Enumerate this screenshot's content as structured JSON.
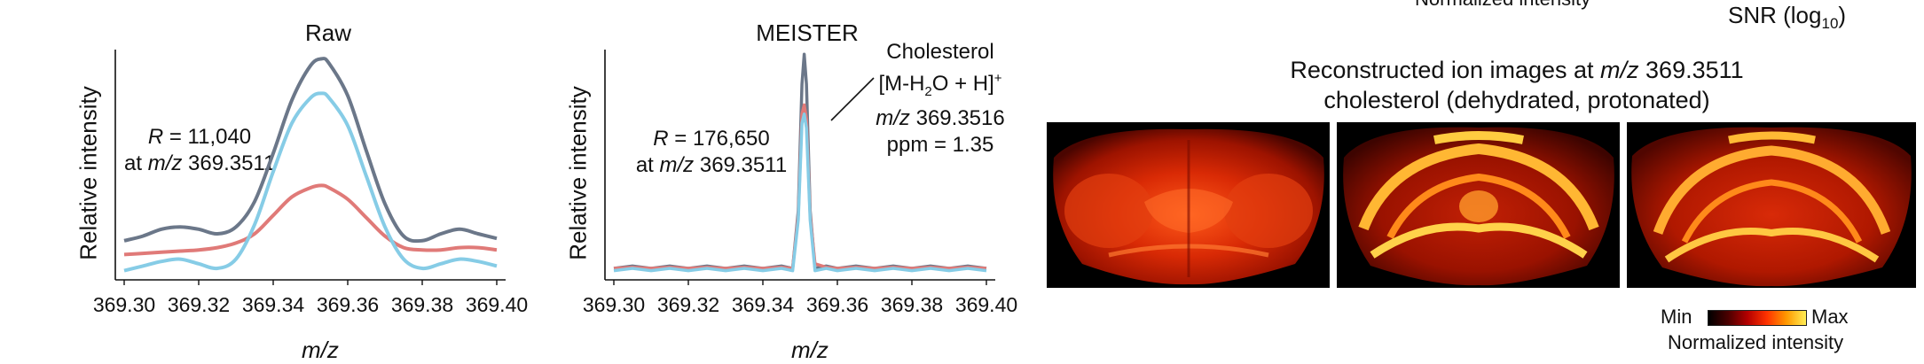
{
  "top_partial": {
    "normalized_intensity_cut": "Normalized intensity",
    "snr_label": "SNR (log",
    "snr_sub": "10",
    "snr_close": ")"
  },
  "raw_panel": {
    "title": "Raw",
    "ylabel": "Relative intensity",
    "xlabel": "m/z",
    "annotation_r_label": "R",
    "annotation_r_value": " = 11,040",
    "annotation_at": "at ",
    "annotation_mz": "m/z",
    "annotation_mz_value": " 369.3511"
  },
  "meister_panel": {
    "title": "MEISTER",
    "ylabel": "Relative intensity",
    "xlabel": "m/z",
    "annotation_r_label": "R",
    "annotation_r_value": " = 176,650",
    "annotation_at": "at ",
    "annotation_mz": "m/z",
    "annotation_mz_value": " 369.3511",
    "peak_label_line1": "Cholesterol",
    "peak_label_line2_a": "[M-H",
    "peak_label_line2_sub": "2",
    "peak_label_line2_b": "O + H]",
    "peak_label_line2_sup": "+",
    "peak_label_line3_mz": "m/z",
    "peak_label_line3_value": " 369.3516",
    "peak_label_line4": "ppm = 1.35"
  },
  "recon": {
    "title_a": "Reconstructed ion images at ",
    "title_mz": "m/z",
    "title_b": " 369.3511",
    "subtitle": "cholesterol (dehydrated, protonated)",
    "legend_min": "Min",
    "legend_max": "Max",
    "legend_caption": "Normalized intensity"
  },
  "colors": {
    "dark_series": "#6b7789",
    "red_series": "#e07a78",
    "blue_series": "#86cce6"
  },
  "chart_data": [
    {
      "type": "line",
      "title": "Raw",
      "xlabel": "m/z",
      "ylabel": "Relative intensity",
      "xlim": [
        369.3,
        369.4
      ],
      "ylim": [
        0,
        1.0
      ],
      "xticks": [
        "369.30",
        "369.32",
        "369.34",
        "369.36",
        "369.38",
        "369.40"
      ],
      "x": [
        369.3,
        369.305,
        369.31,
        369.315,
        369.32,
        369.325,
        369.33,
        369.335,
        369.34,
        369.345,
        369.35,
        369.353,
        369.355,
        369.36,
        369.365,
        369.37,
        369.375,
        369.38,
        369.385,
        369.39,
        369.395,
        369.4
      ],
      "series": [
        {
          "color": "#6b7789",
          "values": [
            0.17,
            0.19,
            0.22,
            0.23,
            0.22,
            0.2,
            0.23,
            0.34,
            0.55,
            0.78,
            0.93,
            0.96,
            0.94,
            0.8,
            0.56,
            0.33,
            0.19,
            0.17,
            0.2,
            0.22,
            0.2,
            0.18
          ]
        },
        {
          "color": "#e07a78",
          "values": [
            0.11,
            0.115,
            0.12,
            0.125,
            0.13,
            0.14,
            0.16,
            0.2,
            0.28,
            0.36,
            0.4,
            0.41,
            0.4,
            0.35,
            0.27,
            0.19,
            0.14,
            0.13,
            0.13,
            0.14,
            0.14,
            0.13
          ]
        },
        {
          "color": "#86cce6",
          "values": [
            0.04,
            0.06,
            0.08,
            0.09,
            0.07,
            0.05,
            0.09,
            0.24,
            0.47,
            0.68,
            0.79,
            0.81,
            0.79,
            0.67,
            0.45,
            0.23,
            0.09,
            0.05,
            0.07,
            0.09,
            0.08,
            0.06
          ]
        }
      ]
    },
    {
      "type": "line",
      "title": "MEISTER",
      "xlabel": "m/z",
      "ylabel": "Relative intensity",
      "xlim": [
        369.3,
        369.4
      ],
      "ylim": [
        0,
        1.0
      ],
      "xticks": [
        "369.30",
        "369.32",
        "369.34",
        "369.36",
        "369.38",
        "369.40"
      ],
      "x": [
        369.3,
        369.305,
        369.31,
        369.315,
        369.32,
        369.325,
        369.33,
        369.335,
        369.34,
        369.345,
        369.348,
        369.3495,
        369.3505,
        369.3511,
        369.3517,
        369.3527,
        369.354,
        369.357,
        369.36,
        369.365,
        369.37,
        369.375,
        369.38,
        369.385,
        369.39,
        369.395,
        369.4
      ],
      "series": [
        {
          "color": "#6b7789",
          "values": [
            0.05,
            0.06,
            0.05,
            0.06,
            0.05,
            0.06,
            0.05,
            0.06,
            0.05,
            0.06,
            0.05,
            0.3,
            0.85,
            0.98,
            0.85,
            0.3,
            0.05,
            0.06,
            0.05,
            0.06,
            0.05,
            0.06,
            0.05,
            0.06,
            0.05,
            0.06,
            0.05
          ]
        },
        {
          "color": "#e07a78",
          "values": [
            0.05,
            0.055,
            0.05,
            0.055,
            0.05,
            0.055,
            0.05,
            0.055,
            0.05,
            0.055,
            0.05,
            0.28,
            0.72,
            0.76,
            0.7,
            0.28,
            0.07,
            0.055,
            0.05,
            0.055,
            0.05,
            0.055,
            0.05,
            0.055,
            0.05,
            0.055,
            0.05
          ]
        },
        {
          "color": "#86cce6",
          "values": [
            0.04,
            0.05,
            0.04,
            0.05,
            0.04,
            0.05,
            0.04,
            0.05,
            0.04,
            0.05,
            0.04,
            0.26,
            0.68,
            0.72,
            0.66,
            0.26,
            0.04,
            0.05,
            0.04,
            0.05,
            0.04,
            0.05,
            0.04,
            0.05,
            0.04,
            0.05,
            0.04
          ]
        }
      ]
    }
  ]
}
